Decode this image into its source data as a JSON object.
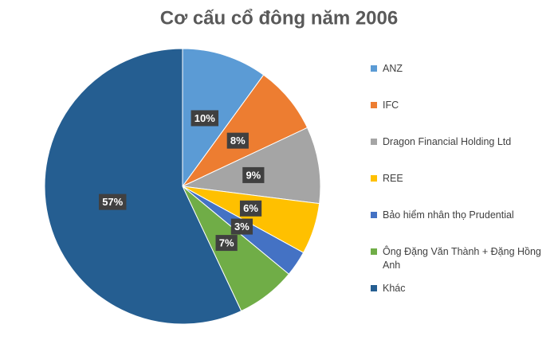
{
  "chart_data": {
    "type": "pie",
    "title": "Cơ cấu cổ đông năm 2006",
    "categories": [
      "ANZ",
      "IFC",
      "Dragon Financial Holding Ltd",
      "REE",
      "Bảo hiểm nhân thọ Prudential",
      "Ông Đặng Văn Thành + Đặng Hồng Anh",
      "Khác"
    ],
    "values": [
      10,
      8,
      9,
      6,
      3,
      7,
      57
    ],
    "value_labels": [
      "10%",
      "8%",
      "9%",
      "6%",
      "3%",
      "7%",
      "57%"
    ],
    "colors": [
      "#5b9bd5",
      "#ed7d31",
      "#a5a5a5",
      "#ffc000",
      "#4472c4",
      "#70ad47",
      "#255e91"
    ],
    "legend": "right"
  }
}
